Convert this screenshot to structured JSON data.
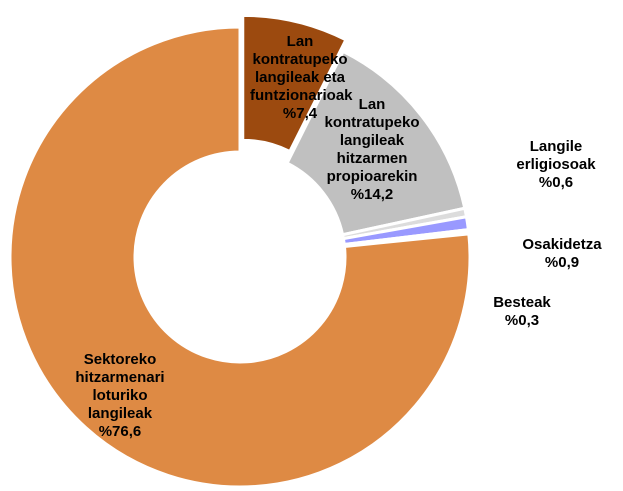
{
  "chart_data": {
    "type": "donut",
    "categories": [
      "Lan kontratupeko langileak eta funtzionarioak",
      "Lan kontratupeko langileak hitzarmen propioarekin",
      "Langile erligiosoak",
      "Osakidetza",
      "Besteak",
      "Sektoreko hitzarmenari loturiko langileak"
    ],
    "values": [
      7.4,
      14.2,
      0.6,
      0.9,
      0.3,
      76.6
    ],
    "value_labels": [
      "%7,4",
      "%14,2",
      "%0,6",
      "%0,9",
      "%0,3",
      "%76,6"
    ],
    "colors": [
      "#9c4a0f",
      "#c0c0c0",
      "#dcdcdc",
      "#9999ff",
      "#ffffff",
      "#de8a44"
    ]
  }
}
